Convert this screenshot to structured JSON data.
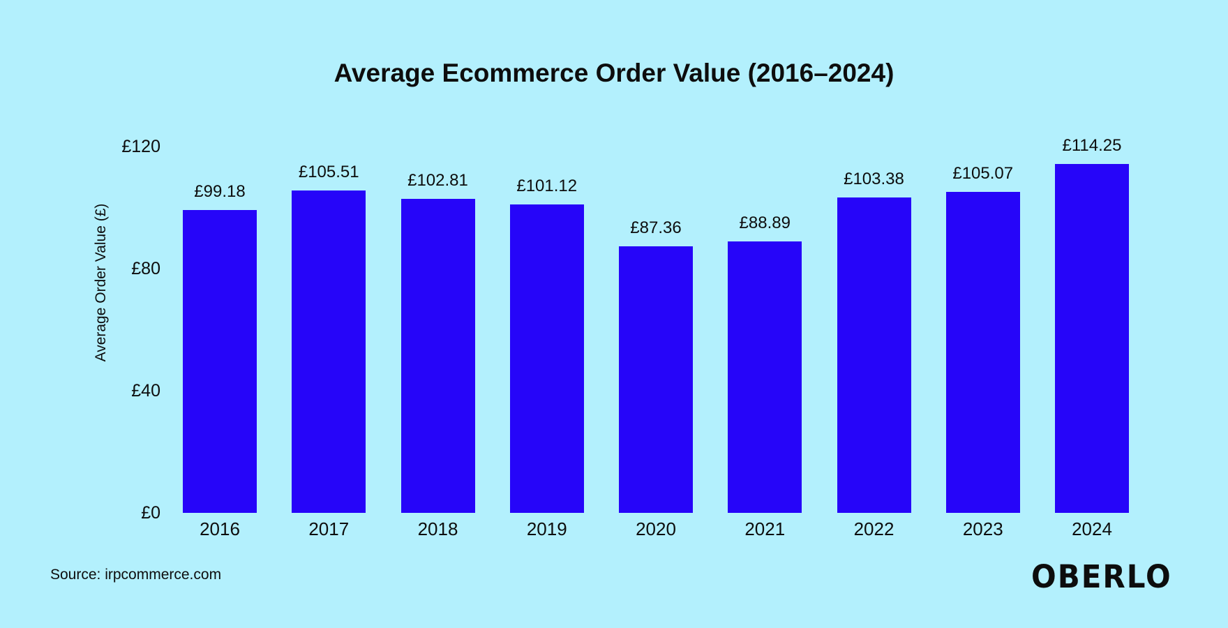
{
  "page": {
    "background_color": "#b3f0fd",
    "text_color": "#0d0d0d"
  },
  "footer": {
    "source": "Source: irpcommerce.com",
    "brand_logo": "OBERLO"
  },
  "chart_data": {
    "type": "bar",
    "title": "Average Ecommerce Order Value (2016–2024)",
    "categories": [
      "2016",
      "2017",
      "2018",
      "2019",
      "2020",
      "2021",
      "2022",
      "2023",
      "2024"
    ],
    "values": [
      99.18,
      105.51,
      102.81,
      101.12,
      87.36,
      88.89,
      103.38,
      105.07,
      114.25
    ],
    "data_labels": [
      "£99.18",
      "£105.51",
      "£102.81",
      "£101.12",
      "£87.36",
      "£88.89",
      "£103.38",
      "£105.07",
      "£114.25"
    ],
    "xlabel": "",
    "ylabel": "Average Order Value (£)",
    "ylim": [
      0,
      120
    ],
    "yticks": [
      0,
      40,
      80,
      120
    ],
    "ytick_labels": [
      "£0",
      "£40",
      "£80",
      "£120"
    ],
    "grid": false,
    "legend": false,
    "bar_color": "#2605f9",
    "background_color": "#b3f0fd",
    "text_color": "#0d0d0d",
    "currency": "£"
  }
}
